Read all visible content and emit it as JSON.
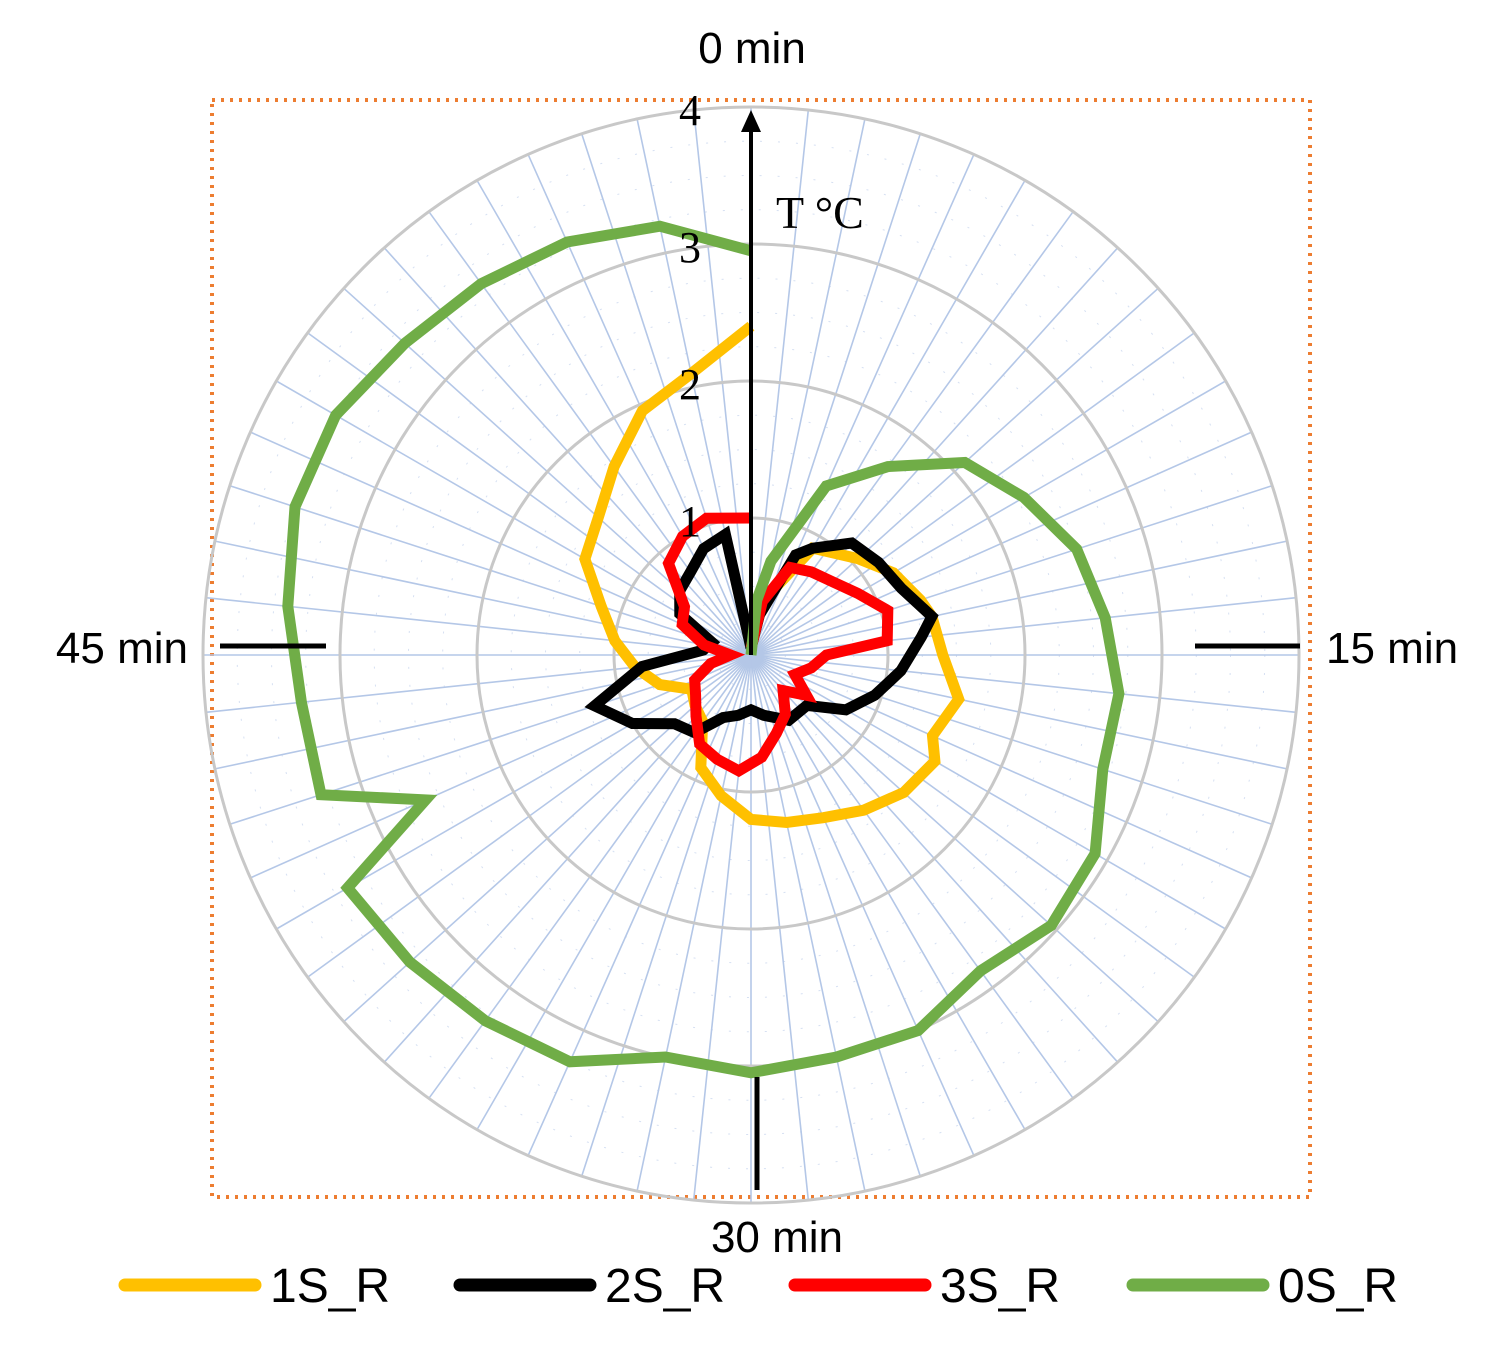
{
  "chart_data": {
    "type": "line",
    "subtype": "polar",
    "time_labels": {
      "top": "0 min",
      "right": "15 min",
      "bottom": "30 min",
      "left": "45 min"
    },
    "radial_axis": {
      "label": "T °C",
      "ticks": [
        "1",
        "2",
        "3",
        "4"
      ],
      "range": [
        0,
        4
      ]
    },
    "grid": true,
    "border": "dotted-orange",
    "legend_position": "bottom",
    "colors": {
      "1S_R": "#FFC000",
      "2S_R": "#000000",
      "3S_R": "#FF0000",
      "0S_R": "#70AD47",
      "grid_ring": "#c8c8c8",
      "grid_spoke": "#b4c7e7",
      "frame": "#ED7D31"
    },
    "series": [
      {
        "name": "1S_R",
        "color": "#FFC000",
        "t_min": [
          0,
          2,
          5,
          8,
          10,
          12,
          13,
          15,
          17,
          19,
          20,
          22,
          24,
          26,
          28,
          30,
          32,
          34,
          36,
          38,
          40,
          42,
          44,
          46,
          48,
          50,
          52,
          54,
          56,
          58,
          60
        ],
        "T": [
          0.05,
          0.4,
          0.9,
          1.05,
          1.2,
          1.3,
          1.35,
          1.4,
          1.55,
          1.45,
          1.55,
          1.5,
          1.4,
          1.3,
          1.25,
          1.2,
          1.05,
          0.9,
          0.6,
          0.55,
          0.5,
          0.7,
          0.85,
          1.0,
          1.15,
          1.4,
          1.5,
          1.7,
          1.95,
          2.1,
          2.4
        ]
      },
      {
        "name": "2S_R",
        "color": "#000000",
        "t_min": [
          0,
          2,
          4,
          5,
          7,
          9,
          11,
          13,
          14,
          16,
          18,
          20,
          22,
          25,
          28,
          30,
          32,
          34,
          36,
          38,
          40,
          42,
          44,
          46,
          48,
          50,
          52,
          54,
          56,
          58,
          60
        ],
        "T": [
          0.05,
          0.3,
          0.8,
          0.9,
          1.1,
          1.15,
          1.2,
          1.35,
          1.25,
          1.1,
          0.95,
          0.8,
          0.55,
          0.55,
          0.45,
          0.4,
          0.45,
          0.5,
          0.7,
          0.75,
          1.0,
          1.2,
          0.8,
          0.35,
          0.3,
          0.6,
          0.7,
          0.75,
          0.85,
          0.9,
          0.05
        ]
      },
      {
        "name": "3S_R",
        "color": "#FF0000",
        "t_min": [
          0,
          2,
          4,
          6,
          8,
          10,
          12,
          14,
          15,
          17,
          19,
          21,
          23,
          25,
          27,
          29,
          31,
          33,
          35,
          37,
          39,
          41,
          43,
          45,
          47,
          49,
          51,
          53,
          55,
          57,
          60
        ],
        "T": [
          0.05,
          0.4,
          0.7,
          0.75,
          0.8,
          0.9,
          1.05,
          1.0,
          0.55,
          0.45,
          0.35,
          0.5,
          0.35,
          0.5,
          0.6,
          0.75,
          0.85,
          0.8,
          0.75,
          0.6,
          0.5,
          0.45,
          0.3,
          0.15,
          0.35,
          0.55,
          0.6,
          0.9,
          1.0,
          1.05,
          1.0
        ]
      },
      {
        "name": "0S_R",
        "color": "#70AD47",
        "t_min": [
          0,
          1,
          2,
          4,
          6,
          8,
          10,
          12,
          14,
          16,
          18,
          20,
          22,
          24,
          26,
          28,
          30,
          32,
          34,
          36,
          38,
          40,
          41,
          42,
          44,
          46,
          48,
          50,
          52,
          54,
          56,
          58,
          60
        ],
        "T": [
          0.0,
          0.4,
          0.7,
          1.35,
          1.7,
          2.1,
          2.3,
          2.5,
          2.6,
          2.7,
          2.7,
          2.9,
          2.95,
          2.85,
          3.0,
          3.0,
          3.05,
          3.0,
          3.25,
          3.3,
          3.35,
          3.4,
          2.6,
          3.3,
          3.3,
          3.4,
          3.5,
          3.5,
          3.4,
          3.35,
          3.3,
          3.2,
          2.95
        ]
      }
    ]
  },
  "legend": [
    {
      "label": "1S_R",
      "color": "#FFC000"
    },
    {
      "label": "2S_R",
      "color": "#000000"
    },
    {
      "label": "3S_R",
      "color": "#FF0000"
    },
    {
      "label": "0S_R",
      "color": "#70AD47"
    }
  ]
}
